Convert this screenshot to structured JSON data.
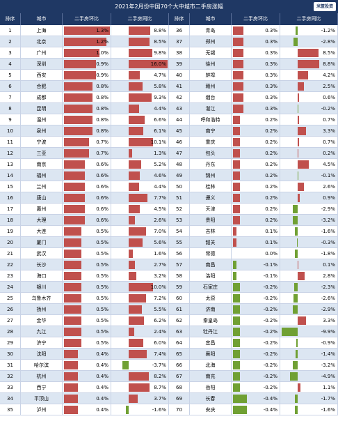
{
  "title": "2021年2月份中国70个大中城市二手房涨幅",
  "logo_text": "米筐投资",
  "headers": [
    "排序",
    "城市",
    "二手房环比",
    "二手房同比",
    "排序",
    "城市",
    "二手房环比",
    "二手房同比"
  ],
  "colors": {
    "header": "#1f3864",
    "positive": "#c0504d",
    "negative": "#70a033",
    "stripe": "#dce6f2"
  },
  "chart_data": {
    "type": "table",
    "columns": [
      "rank",
      "city",
      "mom_pct",
      "yoy_pct"
    ],
    "rows": [
      [
        1,
        "上海",
        1.3,
        8.8
      ],
      [
        2,
        "北京",
        1.2,
        8.5
      ],
      [
        3,
        "广州",
        1.0,
        9.8
      ],
      [
        4,
        "深圳",
        0.9,
        16.0
      ],
      [
        5,
        "西安",
        0.9,
        4.7
      ],
      [
        6,
        "合肥",
        0.8,
        5.8
      ],
      [
        7,
        "成都",
        0.8,
        9.3
      ],
      [
        8,
        "昆明",
        0.8,
        4.4
      ],
      [
        9,
        "温州",
        0.8,
        6.6
      ],
      [
        10,
        "泉州",
        0.8,
        6.1
      ],
      [
        11,
        "宁波",
        0.7,
        10.1
      ],
      [
        12,
        "三亚",
        0.7,
        1.3
      ],
      [
        13,
        "南京",
        0.6,
        5.2
      ],
      [
        14,
        "福州",
        0.6,
        4.6
      ],
      [
        15,
        "兰州",
        0.6,
        4.4
      ],
      [
        16,
        "唐山",
        0.6,
        7.7
      ],
      [
        17,
        "惠州",
        0.6,
        4.5
      ],
      [
        18,
        "大理",
        0.6,
        2.6
      ],
      [
        19,
        "大连",
        0.5,
        7.0
      ],
      [
        20,
        "厦门",
        0.5,
        5.6
      ],
      [
        21,
        "武汉",
        0.5,
        1.6
      ],
      [
        22,
        "长沙",
        0.5,
        2.7
      ],
      [
        23,
        "海口",
        0.5,
        3.2
      ],
      [
        24,
        "银川",
        0.5,
        10.0
      ],
      [
        25,
        "乌鲁木齐",
        0.5,
        7.2
      ],
      [
        26,
        "扬州",
        0.5,
        5.5
      ],
      [
        27,
        "金华",
        0.5,
        6.2
      ],
      [
        28,
        "九江",
        0.5,
        2.4
      ],
      [
        29,
        "济宁",
        0.5,
        6.0
      ],
      [
        30,
        "沈阳",
        0.4,
        7.4
      ],
      [
        31,
        "哈尔滨",
        0.4,
        -3.7
      ],
      [
        32,
        "杭州",
        0.4,
        8.2
      ],
      [
        33,
        "西宁",
        0.4,
        8.7
      ],
      [
        34,
        "平顶山",
        0.4,
        3.7
      ],
      [
        35,
        "泸州",
        0.4,
        -1.6
      ],
      [
        36,
        "青岛",
        0.3,
        -1.2
      ],
      [
        37,
        "郑州",
        0.3,
        -2.8
      ],
      [
        38,
        "无锡",
        0.3,
        8.5
      ],
      [
        39,
        "徐州",
        0.3,
        8.8
      ],
      [
        40,
        "蚌埠",
        0.3,
        4.2
      ],
      [
        41,
        "赣州",
        0.3,
        2.5
      ],
      [
        42,
        "烟台",
        0.3,
        0.6
      ],
      [
        43,
        "湛江",
        0.3,
        -0.2
      ],
      [
        44,
        "呼和浩特",
        0.2,
        0.7
      ],
      [
        45,
        "南宁",
        0.2,
        3.3
      ],
      [
        46,
        "重庆",
        0.2,
        0.7
      ],
      [
        47,
        "包头",
        0.2,
        0.2
      ],
      [
        48,
        "丹东",
        0.2,
        4.5
      ],
      [
        49,
        "锦州",
        0.2,
        -0.1
      ],
      [
        50,
        "桂林",
        0.2,
        2.6
      ],
      [
        51,
        "遵义",
        0.2,
        0.9
      ],
      [
        52,
        "天津",
        0.2,
        -2.9
      ],
      [
        53,
        "贵阳",
        0.2,
        -3.2
      ],
      [
        54,
        "吉林",
        0.1,
        -1.6
      ],
      [
        55,
        "韶关",
        0.1,
        -0.3
      ],
      [
        56,
        "常德",
        0.0,
        -1.8
      ],
      [
        57,
        "南昌",
        -0.1,
        0.1
      ],
      [
        58,
        "洛阳",
        -0.1,
        2.8
      ],
      [
        59,
        "石家庄",
        -0.2,
        -2.3
      ],
      [
        60,
        "太原",
        -0.2,
        -2.6
      ],
      [
        61,
        "济南",
        -0.2,
        -2.9
      ],
      [
        62,
        "秦皇岛",
        -0.2,
        3.3
      ],
      [
        63,
        "牡丹江",
        -0.2,
        -9.9
      ],
      [
        64,
        "宜昌",
        -0.2,
        -0.9
      ],
      [
        65,
        "襄阳",
        -0.2,
        -1.4
      ],
      [
        66,
        "北海",
        -0.2,
        -3.2
      ],
      [
        67,
        "南充",
        -0.2,
        -4.9
      ],
      [
        68,
        "岳阳",
        -0.2,
        1.1
      ],
      [
        69,
        "长春",
        -0.4,
        -1.7
      ],
      [
        70,
        "安庆",
        -0.4,
        -1.6
      ]
    ]
  }
}
